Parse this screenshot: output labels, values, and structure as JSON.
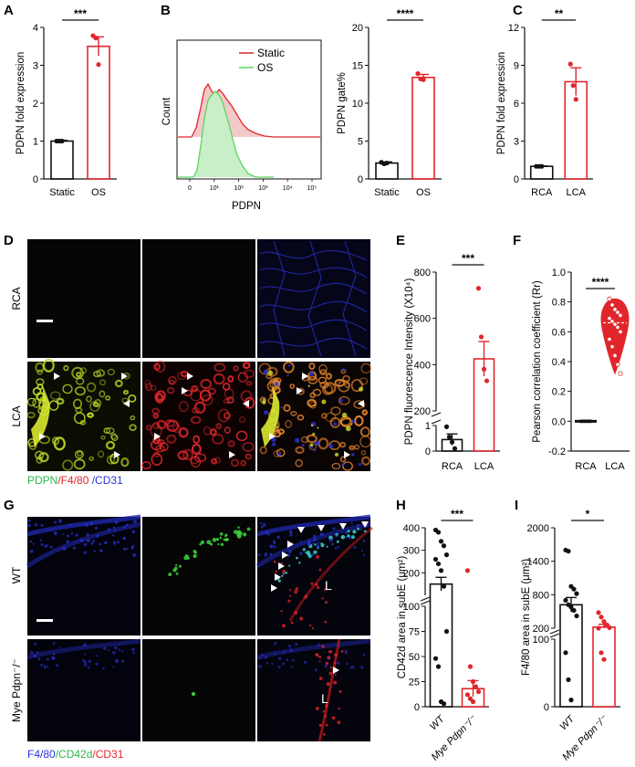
{
  "colors": {
    "black": "#111111",
    "red": "#e0262c",
    "green": "#5cd65c",
    "micro_bg": "#050505",
    "blue": "#2a35d8",
    "yellowgreen": "#b8d628",
    "cyan": "#38d0c8"
  },
  "panels": {
    "A": "A",
    "B": "B",
    "C": "C",
    "D": "D",
    "E": "E",
    "F": "F",
    "G": "G",
    "H": "H",
    "I": "I"
  },
  "micro": {
    "D": {
      "rows": [
        "RCA",
        "LCA"
      ],
      "caption": [
        {
          "text": "PDPN",
          "color": "#2ab84a"
        },
        {
          "text": "/F4/80",
          "color": "#e0262c"
        },
        {
          "text": " /CD31",
          "color": "#2a35d8"
        }
      ]
    },
    "G": {
      "rows": [
        "WT",
        "Mye Pdpn⁻/⁻"
      ],
      "lumen_label": "L",
      "caption": [
        {
          "text": "F4/80",
          "color": "#2a35d8"
        },
        {
          "text": "/CD42d",
          "color": "#2ab84a"
        },
        {
          "text": "/CD31",
          "color": "#e0262c"
        }
      ]
    }
  },
  "flow_B": {
    "ylabel": "Count",
    "xlabel": "PDPN",
    "legend": [
      "Static",
      "OS"
    ],
    "ticks": [
      "0",
      "10¹",
      "10²",
      "10³",
      "10⁴",
      "10⁵"
    ]
  },
  "chart_data": [
    {
      "id": "A",
      "type": "bar",
      "ylabel": "PDPN fold expression",
      "categories": [
        "Static",
        "OS"
      ],
      "values": [
        1.0,
        3.5
      ],
      "errors": [
        0.02,
        0.25
      ],
      "points": [
        [
          1.0,
          1.0,
          1.0
        ],
        [
          3.78,
          3.72,
          3.02
        ]
      ],
      "ylim": [
        0,
        4
      ],
      "yticks": [
        "0",
        "1",
        "2",
        "3",
        "4"
      ],
      "significance": "***"
    },
    {
      "id": "B2",
      "type": "bar",
      "ylabel": "PDPN gate%",
      "categories": [
        "Static",
        "OS"
      ],
      "values": [
        2.1,
        13.4
      ],
      "errors": [
        0.15,
        0.4
      ],
      "points": [
        [
          2.2,
          2.0,
          2.1
        ],
        [
          13.9,
          13.2,
          13.1
        ]
      ],
      "ylim": [
        0,
        20
      ],
      "yticks": [
        "0",
        "5",
        "10",
        "15",
        "20"
      ],
      "significance": "****"
    },
    {
      "id": "C",
      "type": "bar",
      "ylabel": "PDPN fold expression",
      "categories": [
        "RCA",
        "LCA"
      ],
      "values": [
        1.0,
        7.7
      ],
      "errors": [
        0.03,
        1.1
      ],
      "points": [
        [
          1.0,
          1.0,
          1.0
        ],
        [
          9.1,
          7.4,
          6.3
        ]
      ],
      "ylim": [
        0,
        12
      ],
      "yticks": [
        "0",
        "3",
        "6",
        "9",
        "12"
      ],
      "significance": "**"
    },
    {
      "id": "E",
      "type": "bar",
      "ylabel": "PDPN fluorescence Intensity (X10⁴)",
      "categories": [
        "RCA",
        "LCA"
      ],
      "values": [
        0.45,
        425
      ],
      "errors": [
        0.22,
        75
      ],
      "points": [
        [
          0.95,
          0.55,
          0.35,
          0.1
        ],
        [
          730,
          520,
          380,
          330
        ]
      ],
      "ylim_lower": [
        0,
        1
      ],
      "ylim_upper": [
        200,
        800
      ],
      "yticks": [
        "0",
        "1",
        "200",
        "400",
        "600",
        "800"
      ],
      "significance": "***"
    },
    {
      "id": "F",
      "type": "violin",
      "ylabel": "Pearson correlation coefficient (Rr)",
      "categories": [
        "RCA",
        "LCA"
      ],
      "points": [
        [
          0,
          0,
          0,
          0,
          0,
          0,
          0,
          0,
          0,
          0,
          0,
          0,
          0,
          0,
          0
        ],
        [
          0.82,
          0.78,
          0.75,
          0.73,
          0.71,
          0.69,
          0.67,
          0.65,
          0.63,
          0.6,
          0.55,
          0.5,
          0.44,
          0.38,
          0.32
        ]
      ],
      "median": [
        0,
        0.66
      ],
      "ylim": [
        -0.2,
        1.0
      ],
      "yticks": [
        "-0.2",
        "0.0",
        "0.2",
        "0.4",
        "0.6",
        "0.8",
        "1.0"
      ],
      "significance": "****"
    },
    {
      "id": "H",
      "type": "bar",
      "ylabel": "CD42d area in subE (μm²)",
      "categories": [
        "WT",
        "Mye Pdpn⁻/⁻"
      ],
      "values": [
        150,
        18
      ],
      "errors": [
        30,
        8
      ],
      "points": [
        [
          390,
          380,
          340,
          320,
          280,
          260,
          240,
          210,
          140,
          75,
          48,
          40,
          5,
          3
        ],
        [
          210,
          40,
          25,
          20,
          15,
          12,
          8,
          5
        ]
      ],
      "ylim_lower": [
        0,
        100
      ],
      "ylim_upper": [
        100,
        400
      ],
      "yticks": [
        "0",
        "25",
        "50",
        "75",
        "100",
        "200",
        "300",
        "400"
      ],
      "significance": "***"
    },
    {
      "id": "I",
      "type": "bar",
      "ylabel": "F4/80 area in subE (μm²)",
      "categories": [
        "WT",
        "Mye Pdpn⁻/⁻"
      ],
      "values": [
        620,
        220
      ],
      "errors": [
        130,
        50
      ],
      "points": [
        [
          1600,
          1580,
          950,
          900,
          820,
          700,
          620,
          580,
          520,
          420,
          80,
          40,
          10
        ],
        [
          480,
          400,
          320,
          260,
          210,
          130,
          80,
          70
        ]
      ],
      "ylim_lower": [
        0,
        100
      ],
      "ylim_upper": [
        200,
        2000
      ],
      "yticks": [
        "0",
        "100",
        "200",
        "800",
        "1400",
        "2000"
      ],
      "significance": "*"
    }
  ]
}
